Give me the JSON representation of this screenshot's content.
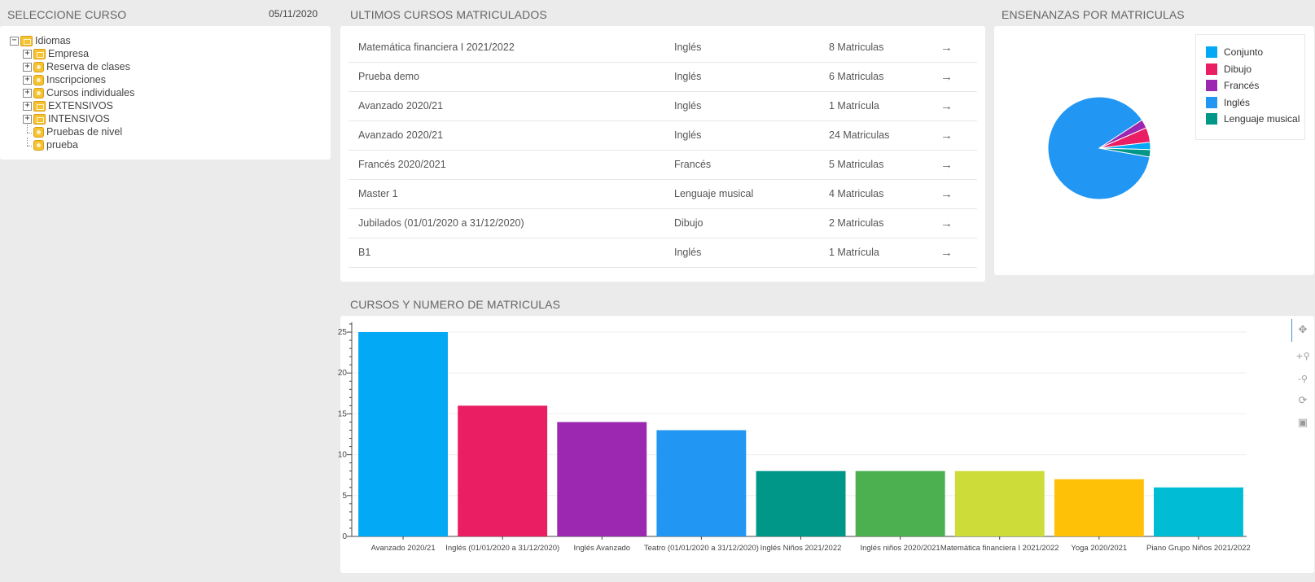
{
  "left_panel": {
    "title": "SELECCIONE CURSO",
    "date": "05/11/2020",
    "tree": {
      "root": "Idiomas",
      "children": [
        {
          "label": "Empresa",
          "expandable": true,
          "kind": "folder"
        },
        {
          "label": "Reserva de clases",
          "expandable": true,
          "kind": "item"
        },
        {
          "label": "Inscripciones",
          "expandable": true,
          "kind": "item"
        },
        {
          "label": "Cursos individuales",
          "expandable": true,
          "kind": "item"
        },
        {
          "label": "EXTENSIVOS",
          "expandable": true,
          "kind": "folder"
        },
        {
          "label": "INTENSIVOS",
          "expandable": true,
          "kind": "folder"
        },
        {
          "label": "Pruebas de nivel",
          "expandable": false,
          "kind": "item"
        },
        {
          "label": "prueba",
          "expandable": false,
          "kind": "item"
        }
      ]
    }
  },
  "courses_panel": {
    "title": "ULTIMOS CURSOS MATRICULADOS",
    "rows": [
      {
        "name": "Matemática financiera I 2021/2022",
        "language": "Inglés",
        "count": "8 Matriculas"
      },
      {
        "name": "Prueba demo",
        "language": "Inglés",
        "count": "6 Matriculas"
      },
      {
        "name": "Avanzado 2020/21",
        "language": "Inglés",
        "count": "1 Matrícula"
      },
      {
        "name": "Avanzado 2020/21",
        "language": "Inglés",
        "count": "24 Matriculas"
      },
      {
        "name": "Francés 2020/2021",
        "language": "Francés",
        "count": "5 Matriculas"
      },
      {
        "name": "Master 1",
        "language": "Lenguaje musical",
        "count": "4 Matriculas"
      },
      {
        "name": "Jubilados (01/01/2020 a 31/12/2020)",
        "language": "Dibujo",
        "count": "2 Matriculas"
      },
      {
        "name": "B1",
        "language": "Inglés",
        "count": "1 Matrícula"
      }
    ],
    "arrow_icon": "→"
  },
  "pie_panel": {
    "title": "ENSENANZAS POR MATRICULAS"
  },
  "bar_panel": {
    "title": "CURSOS Y NUMERO DE MATRICULAS"
  },
  "chart_data": [
    {
      "type": "pie",
      "legend_position": "top-right",
      "series": [
        {
          "name": "Conjunto",
          "value": 0,
          "color": "#03a9f4"
        },
        {
          "name": "Dibujo",
          "value": 2,
          "color": "#e91e63"
        },
        {
          "name": "Francés",
          "value": 1.2,
          "color": "#9c27b0"
        },
        {
          "name": "Inglés",
          "value": 38,
          "color": "#2196f3"
        },
        {
          "name": "Lenguaje musical",
          "value": 1,
          "color": "#009688"
        }
      ],
      "hidden_slices": [
        {
          "value": 1,
          "color": "#03a9f4"
        }
      ]
    },
    {
      "type": "bar",
      "categories": [
        "Avanzado 2020/21",
        "Inglés (01/01/2020 a 31/12/2020)",
        "Inglés Avanzado",
        "Teatro (01/01/2020 a 31/12/2020)",
        "Inglés Niños 2021/2022",
        "Inglés niños 2020/2021",
        "Matemática financiera I 2021/2022",
        "Yoga 2020/2021",
        "Piano Grupo Niños 2021/2022"
      ],
      "values": [
        25,
        16,
        14,
        13,
        8,
        8,
        8,
        7,
        6
      ],
      "colors": [
        "#03a9f4",
        "#e91e63",
        "#9c27b0",
        "#2196f3",
        "#009688",
        "#4caf50",
        "#cddc39",
        "#ffc107",
        "#00bcd4"
      ],
      "yticks": [
        0,
        5,
        10,
        15,
        20,
        25
      ],
      "ylim": [
        0,
        26.2
      ],
      "grid": true
    }
  ],
  "toolbar": {
    "pan_icon": "✥",
    "zoom_in_icon": "+⚲",
    "zoom_out_icon": "-⚲",
    "reset_icon": "⟳",
    "save_icon": "▣"
  }
}
